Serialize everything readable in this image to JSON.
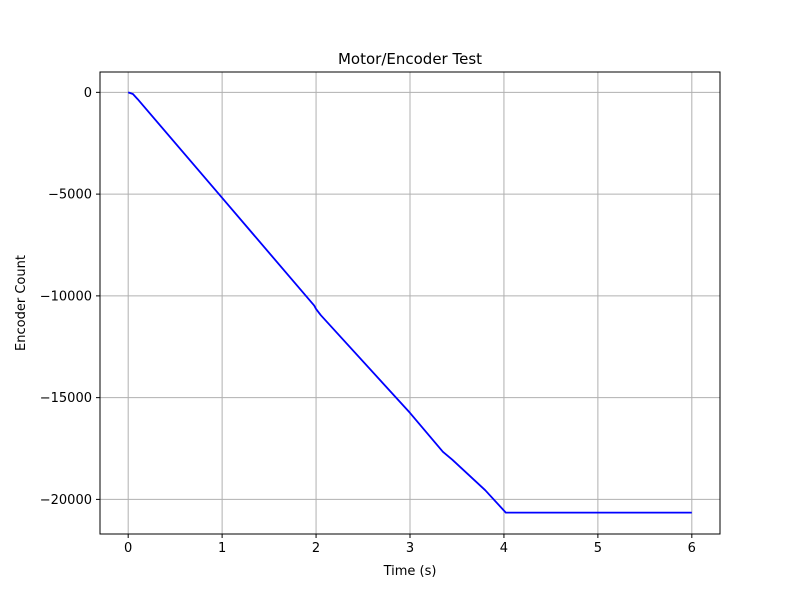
{
  "chart_data": {
    "type": "line",
    "title": "Motor/Encoder Test",
    "xlabel": "Time (s)",
    "ylabel": "Encoder Count",
    "xlim": [
      -0.3,
      6.3
    ],
    "ylim": [
      -21700,
      1000
    ],
    "xticks": [
      0,
      1,
      2,
      3,
      4,
      5,
      6
    ],
    "xtick_labels": [
      "0",
      "1",
      "2",
      "3",
      "4",
      "5",
      "6"
    ],
    "yticks": [
      0,
      -5000,
      -10000,
      -15000,
      -20000
    ],
    "ytick_labels": [
      "0",
      "−5000",
      "−10000",
      "−15000",
      "−20000"
    ],
    "grid": true,
    "series": [
      {
        "color": "#0000ff",
        "x": [
          0.0,
          0.05,
          0.1,
          1.0,
          1.98,
          2.0,
          2.05,
          3.0,
          3.35,
          3.45,
          3.8,
          4.02,
          4.5,
          5.0,
          6.0
        ],
        "y": [
          0,
          -80,
          -330,
          -5180,
          -10480,
          -10650,
          -10950,
          -15750,
          -17660,
          -18050,
          -19550,
          -20650,
          -20650,
          -20650,
          -20650
        ]
      }
    ]
  }
}
